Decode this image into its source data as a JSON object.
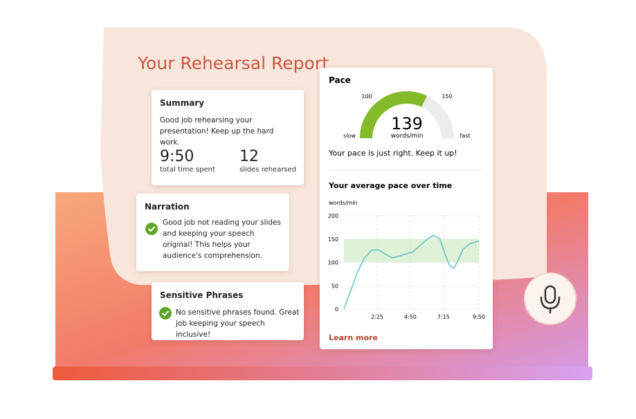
{
  "header": {
    "title": "Your Rehearsal Report"
  },
  "summary": {
    "title": "Summary",
    "message": "Good job rehearsing your presentation! Keep up the hard work.",
    "stats": [
      {
        "value": "9:50",
        "label": "total time spent"
      },
      {
        "value": 12,
        "label": "slides rehearsed"
      }
    ]
  },
  "narration": {
    "title": "Narration",
    "message": "Good job not reading your slides and keeping your speech original! This helps your audience's comprehension."
  },
  "sensitive_phrases": {
    "title": "Sensitive Phrases",
    "message": "No sensitive phrases found. Great job keeping your speech inclusive!"
  },
  "pace": {
    "title": "Pace",
    "gauge": {
      "value": 139,
      "unit": "words/min",
      "marks": [
        100,
        150
      ],
      "low_label": "slow",
      "high_label": "fast",
      "color": "#84b92a"
    },
    "message": "Your pace is just right. Keep it up!",
    "link": "Learn more"
  },
  "pace_chart": {
    "type": "line",
    "title": "Your average pace over time",
    "y_label": "words/min",
    "x": [
      0,
      30,
      60,
      90,
      120,
      150,
      180,
      210,
      240,
      270,
      300,
      330,
      360,
      390,
      420,
      440,
      460,
      480,
      500,
      520,
      550,
      590
    ],
    "values": [
      0,
      40,
      80,
      110,
      126,
      127,
      118,
      110,
      113,
      118,
      122,
      135,
      148,
      158,
      150,
      120,
      95,
      87,
      105,
      128,
      140,
      146
    ],
    "color": "#72c9c4",
    "xlim": [
      0,
      590
    ],
    "ylim": [
      0,
      200
    ],
    "xticks": [
      {
        "value": 145,
        "label": "2:25"
      },
      {
        "value": 290,
        "label": "4:50"
      },
      {
        "value": 435,
        "label": "7:15"
      },
      {
        "value": 590,
        "label": "9:50"
      }
    ],
    "yticks": [
      0,
      50,
      100,
      150,
      200
    ],
    "target_range": [
      100,
      150
    ],
    "target_color": "#dcf1d6",
    "grid": true
  }
}
